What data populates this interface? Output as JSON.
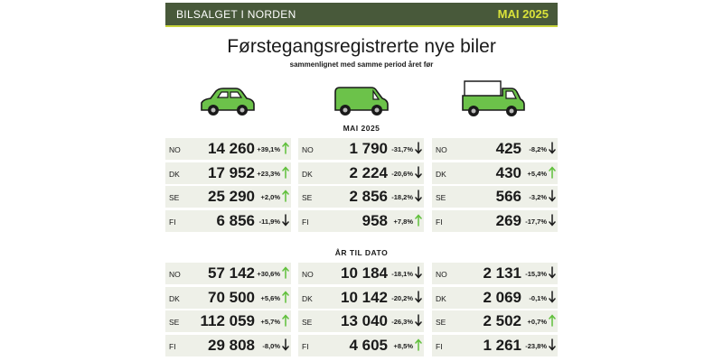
{
  "header": {
    "left": "BILSALGET I NORDEN",
    "right": "MAI 2025"
  },
  "title": "Førstegangsregistrerte nye biler",
  "subtitle": "sammenlignet med samme period året før",
  "icons": [
    "car-icon",
    "van-icon",
    "truck-icon"
  ],
  "colors": {
    "banner": "#48593a",
    "accent": "#d9e23a",
    "up": "#5fbf3a",
    "down": "#1a1a1a",
    "row_bg": "#eef0e8",
    "vehicle": "#6cc24a"
  },
  "sections": [
    {
      "label": "MAI 2025",
      "columns": [
        [
          {
            "country": "NO",
            "value": "14 260",
            "change": "+39,1%",
            "dir": "up"
          },
          {
            "country": "DK",
            "value": "17 952",
            "change": "+23,3%",
            "dir": "up"
          },
          {
            "country": "SE",
            "value": "25 290",
            "change": "+2,0%",
            "dir": "up"
          },
          {
            "country": "FI",
            "value": "6 856",
            "change": "-11,9%",
            "dir": "down"
          }
        ],
        [
          {
            "country": "NO",
            "value": "1 790",
            "change": "-31,7%",
            "dir": "down"
          },
          {
            "country": "DK",
            "value": "2 224",
            "change": "-20,6%",
            "dir": "down"
          },
          {
            "country": "SE",
            "value": "2 856",
            "change": "-18,2%",
            "dir": "down"
          },
          {
            "country": "FI",
            "value": "958",
            "change": "+7,8%",
            "dir": "up"
          }
        ],
        [
          {
            "country": "NO",
            "value": "425",
            "change": "-8,2%",
            "dir": "down"
          },
          {
            "country": "DK",
            "value": "430",
            "change": "+5,4%",
            "dir": "up"
          },
          {
            "country": "SE",
            "value": "566",
            "change": "-3,2%",
            "dir": "down"
          },
          {
            "country": "FI",
            "value": "269",
            "change": "-17,7%",
            "dir": "down"
          }
        ]
      ]
    },
    {
      "label": "ÅR TIL DATO",
      "columns": [
        [
          {
            "country": "NO",
            "value": "57 142",
            "change": "+30,6%",
            "dir": "up"
          },
          {
            "country": "DK",
            "value": "70 500",
            "change": "+5,6%",
            "dir": "up"
          },
          {
            "country": "SE",
            "value": "112 059",
            "change": "+5,7%",
            "dir": "up"
          },
          {
            "country": "FI",
            "value": "29 808",
            "change": "-8,0%",
            "dir": "down"
          }
        ],
        [
          {
            "country": "NO",
            "value": "10 184",
            "change": "-18,1%",
            "dir": "down"
          },
          {
            "country": "DK",
            "value": "10 142",
            "change": "-20,2%",
            "dir": "down"
          },
          {
            "country": "SE",
            "value": "13 040",
            "change": "-26,3%",
            "dir": "down"
          },
          {
            "country": "FI",
            "value": "4 605",
            "change": "+8,5%",
            "dir": "up"
          }
        ],
        [
          {
            "country": "NO",
            "value": "2 131",
            "change": "-15,3%",
            "dir": "down"
          },
          {
            "country": "DK",
            "value": "2 069",
            "change": "-0,1%",
            "dir": "down"
          },
          {
            "country": "SE",
            "value": "2 502",
            "change": "+0,7%",
            "dir": "up"
          },
          {
            "country": "FI",
            "value": "1 261",
            "change": "-23,8%",
            "dir": "down"
          }
        ]
      ]
    }
  ]
}
